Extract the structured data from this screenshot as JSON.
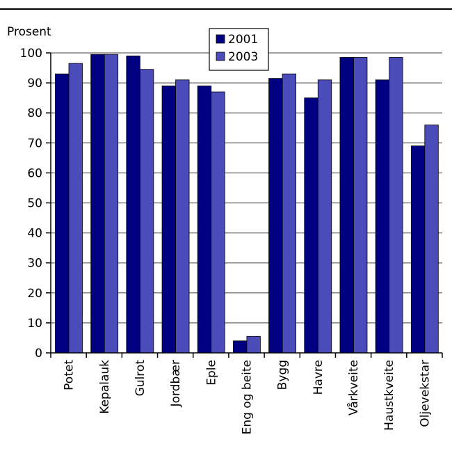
{
  "chart_data": {
    "type": "bar",
    "ylabel": "Prosent",
    "ylim": [
      0,
      100
    ],
    "yticks": [
      0,
      10,
      20,
      30,
      40,
      50,
      60,
      70,
      80,
      90,
      100
    ],
    "grid": true,
    "legend_position": "top-center",
    "categories": [
      "Potet",
      "Kepalauk",
      "Gulrot",
      "Jordbær",
      "Eple",
      "Eng og beite",
      "Bygg",
      "Havre",
      "Vårkveite",
      "Haustkveite",
      "Oljevekstar"
    ],
    "series": [
      {
        "name": "2001",
        "color": "#000080",
        "values": [
          93,
          99.5,
          99,
          89,
          89,
          4,
          91.5,
          85,
          98.5,
          91,
          69
        ]
      },
      {
        "name": "2003",
        "color": "#4B4BBA",
        "values": [
          96.5,
          99.5,
          94.5,
          91,
          87,
          5.5,
          93,
          91,
          98.5,
          98.5,
          76
        ]
      }
    ]
  }
}
